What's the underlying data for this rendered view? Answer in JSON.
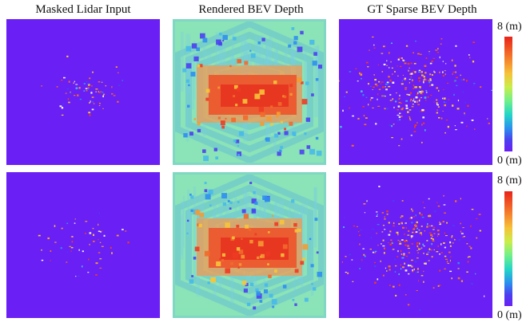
{
  "columns": [
    {
      "title": "Masked Lidar Input"
    },
    {
      "title": "Rendered BEV Depth"
    },
    {
      "title": "GT Sparse BEV Depth"
    }
  ],
  "colorbar": {
    "max_label": "8 (m)",
    "min_label": "0 (m)",
    "colors": [
      "#e8231a",
      "#f5792a",
      "#f6c238",
      "#c9ee4a",
      "#6ff08a",
      "#22d6c7",
      "#2a8ff0",
      "#4b40f0",
      "#6a1ff5"
    ]
  },
  "colors": {
    "background_purple": "#6a1ff5",
    "rendered_base": "#8be3b8",
    "near_depth": "#ee4f27",
    "mid_depth": "#47b9ea"
  }
}
